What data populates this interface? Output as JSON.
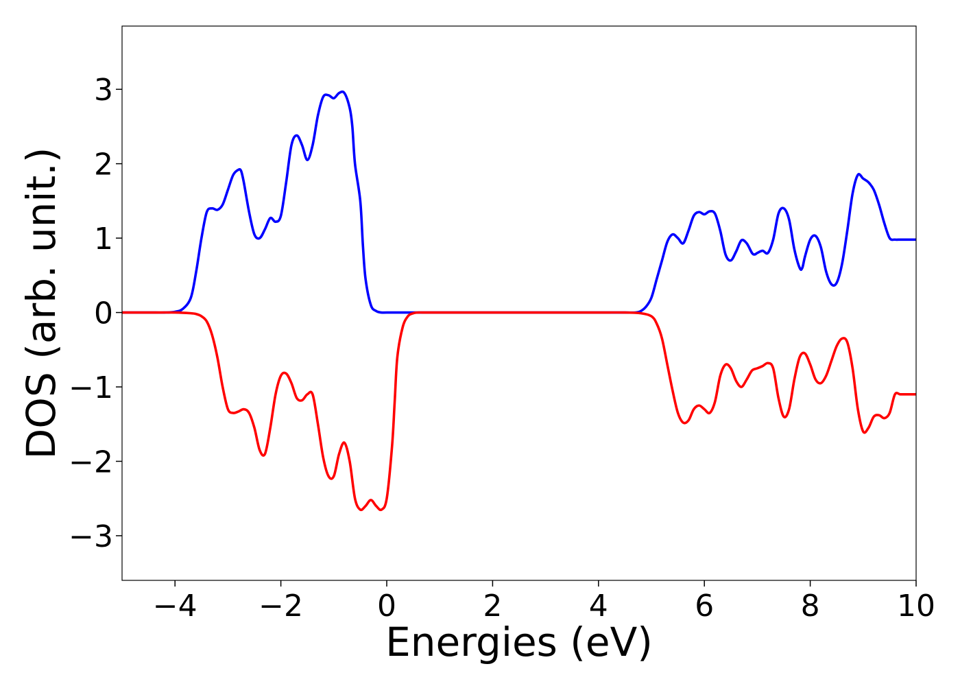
{
  "chart_data": {
    "type": "line",
    "xlabel": "Energies (eV)",
    "ylabel": "DOS (arb. unit.)",
    "xlim": [
      -5,
      10
    ],
    "ylim": [
      -3.6,
      3.85
    ],
    "xticks": [
      -4,
      -2,
      0,
      2,
      4,
      6,
      8,
      10
    ],
    "xtick_labels": [
      "−4",
      "−2",
      "0",
      "2",
      "4",
      "6",
      "8",
      "10"
    ],
    "yticks": [
      -3,
      -2,
      -1,
      0,
      1,
      2,
      3
    ],
    "ytick_labels": [
      "−3",
      "−2",
      "−1",
      "0",
      "1",
      "2",
      "3"
    ],
    "grid": false,
    "legend": "none",
    "series": [
      {
        "color": "#0000ff",
        "x": [
          -5,
          -4.5,
          -4.2,
          -4.0,
          -3.85,
          -3.7,
          -3.6,
          -3.5,
          -3.4,
          -3.3,
          -3.2,
          -3.1,
          -3.0,
          -2.9,
          -2.8,
          -2.75,
          -2.7,
          -2.6,
          -2.5,
          -2.4,
          -2.3,
          -2.2,
          -2.1,
          -2.0,
          -1.9,
          -1.8,
          -1.7,
          -1.6,
          -1.5,
          -1.4,
          -1.3,
          -1.2,
          -1.1,
          -1.0,
          -0.9,
          -0.8,
          -0.7,
          -0.65,
          -0.6,
          -0.5,
          -0.45,
          -0.4,
          -0.3,
          -0.2,
          -0.1,
          0.0,
          0.5,
          1,
          2,
          3,
          4,
          4.5,
          4.7,
          4.8,
          4.9,
          5.0,
          5.1,
          5.2,
          5.3,
          5.4,
          5.5,
          5.6,
          5.7,
          5.8,
          5.9,
          6.0,
          6.1,
          6.2,
          6.3,
          6.4,
          6.5,
          6.6,
          6.7,
          6.8,
          6.9,
          6.95,
          7.0,
          7.1,
          7.2,
          7.3,
          7.4,
          7.5,
          7.6,
          7.7,
          7.8,
          7.85,
          7.9,
          8.0,
          8.1,
          8.2,
          8.3,
          8.4,
          8.5,
          8.6,
          8.7,
          8.8,
          8.9,
          9.0,
          9.1,
          9.2,
          9.3,
          9.4,
          9.5,
          9.6,
          9.7,
          9.8,
          9.9,
          10.0
        ],
        "y": [
          0,
          0,
          0,
          0.01,
          0.05,
          0.2,
          0.55,
          1.0,
          1.35,
          1.4,
          1.38,
          1.45,
          1.65,
          1.85,
          1.92,
          1.9,
          1.75,
          1.35,
          1.05,
          1.0,
          1.12,
          1.27,
          1.22,
          1.3,
          1.75,
          2.25,
          2.38,
          2.25,
          2.05,
          2.25,
          2.65,
          2.9,
          2.92,
          2.88,
          2.95,
          2.95,
          2.75,
          2.5,
          2.0,
          1.5,
          0.9,
          0.45,
          0.1,
          0.02,
          0.0,
          0.0,
          0,
          0,
          0,
          0,
          0,
          0,
          0.0,
          0.02,
          0.08,
          0.2,
          0.45,
          0.7,
          0.95,
          1.05,
          1.0,
          0.93,
          1.1,
          1.3,
          1.35,
          1.32,
          1.36,
          1.33,
          1.1,
          0.78,
          0.7,
          0.82,
          0.97,
          0.93,
          0.8,
          0.78,
          0.8,
          0.83,
          0.8,
          0.98,
          1.33,
          1.4,
          1.25,
          0.85,
          0.6,
          0.6,
          0.75,
          0.98,
          1.03,
          0.88,
          0.55,
          0.38,
          0.4,
          0.65,
          1.1,
          1.6,
          1.85,
          1.8,
          1.75,
          1.65,
          1.45,
          1.2,
          1.0,
          0.98,
          0.98,
          0.98,
          0.98,
          0.98
        ]
      },
      {
        "color": "#ff0000",
        "x": [
          -5,
          -4.5,
          -4.0,
          -3.7,
          -3.6,
          -3.5,
          -3.4,
          -3.3,
          -3.2,
          -3.1,
          -3.0,
          -2.9,
          -2.8,
          -2.7,
          -2.6,
          -2.5,
          -2.4,
          -2.3,
          -2.2,
          -2.1,
          -2.0,
          -1.9,
          -1.8,
          -1.7,
          -1.6,
          -1.5,
          -1.4,
          -1.3,
          -1.2,
          -1.1,
          -1.0,
          -0.9,
          -0.8,
          -0.7,
          -0.6,
          -0.5,
          -0.4,
          -0.3,
          -0.2,
          -0.1,
          0.0,
          0.1,
          0.15,
          0.2,
          0.3,
          0.4,
          0.5,
          0.6,
          0.7,
          0.8,
          1,
          2,
          3,
          4,
          4.5,
          4.8,
          5.0,
          5.1,
          5.2,
          5.3,
          5.4,
          5.5,
          5.6,
          5.7,
          5.8,
          5.9,
          6.0,
          6.1,
          6.2,
          6.3,
          6.4,
          6.5,
          6.6,
          6.7,
          6.8,
          6.9,
          7.0,
          7.1,
          7.2,
          7.3,
          7.4,
          7.5,
          7.6,
          7.7,
          7.8,
          7.9,
          8.0,
          8.1,
          8.2,
          8.3,
          8.4,
          8.5,
          8.6,
          8.7,
          8.8,
          8.9,
          9.0,
          9.1,
          9.2,
          9.3,
          9.4,
          9.5,
          9.6,
          9.7,
          9.8,
          9.9,
          10.0
        ],
        "y": [
          0,
          0,
          0,
          -0.01,
          -0.02,
          -0.05,
          -0.12,
          -0.3,
          -0.6,
          -1.0,
          -1.3,
          -1.35,
          -1.33,
          -1.3,
          -1.35,
          -1.55,
          -1.85,
          -1.9,
          -1.55,
          -1.1,
          -0.85,
          -0.82,
          -0.95,
          -1.15,
          -1.18,
          -1.1,
          -1.1,
          -1.5,
          -1.95,
          -2.2,
          -2.2,
          -1.9,
          -1.75,
          -2.0,
          -2.5,
          -2.65,
          -2.6,
          -2.52,
          -2.6,
          -2.65,
          -2.5,
          -1.8,
          -1.2,
          -0.6,
          -0.2,
          -0.05,
          -0.01,
          0,
          0,
          0,
          0,
          0,
          0,
          0,
          0,
          -0.01,
          -0.05,
          -0.15,
          -0.35,
          -0.7,
          -1.05,
          -1.35,
          -1.48,
          -1.45,
          -1.3,
          -1.25,
          -1.3,
          -1.35,
          -1.2,
          -0.85,
          -0.7,
          -0.75,
          -0.92,
          -1.0,
          -0.9,
          -0.78,
          -0.75,
          -0.72,
          -0.68,
          -0.75,
          -1.15,
          -1.4,
          -1.3,
          -0.9,
          -0.6,
          -0.55,
          -0.7,
          -0.9,
          -0.95,
          -0.85,
          -0.65,
          -0.45,
          -0.35,
          -0.4,
          -0.75,
          -1.3,
          -1.6,
          -1.55,
          -1.4,
          -1.38,
          -1.42,
          -1.35,
          -1.1,
          -1.1,
          -1.1,
          -1.1,
          -1.1
        ]
      }
    ]
  }
}
